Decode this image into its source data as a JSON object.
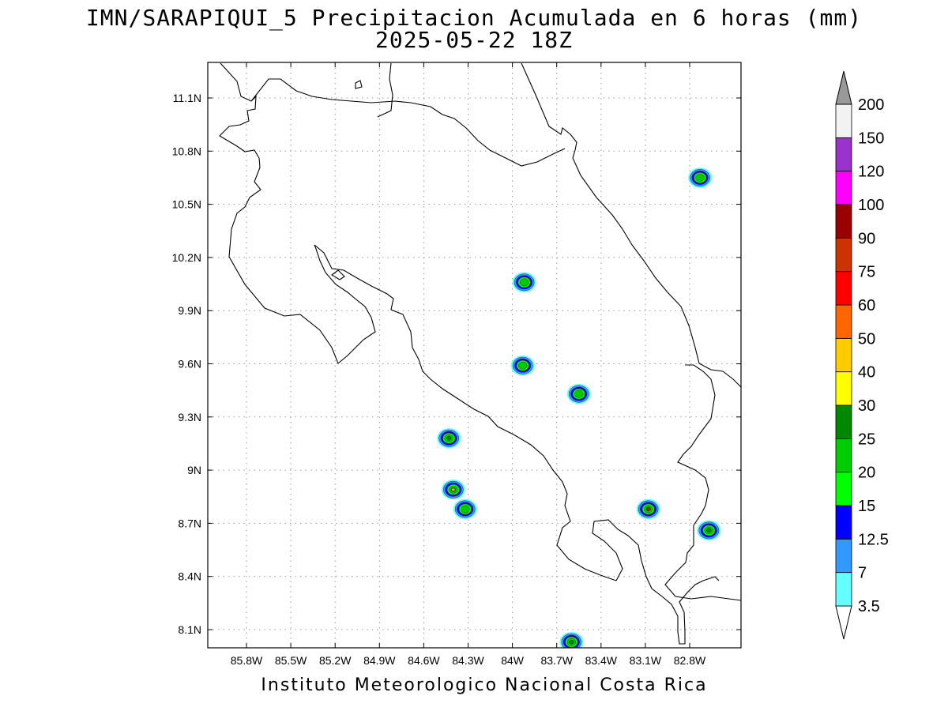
{
  "title": {
    "line1": "IMN/SARAPIQUI_5 Precipitacion Acumulada en 6 horas (mm)",
    "line2": "2025-05-22 18Z"
  },
  "footer": "Instituto Meteorologico Nacional Costa Rica",
  "map": {
    "lon_labels": [
      "85.8W",
      "85.5W",
      "85.2W",
      "84.9W",
      "84.6W",
      "84.3W",
      "84W",
      "83.7W",
      "83.4W",
      "83.1W",
      "82.8W"
    ],
    "lat_labels": [
      "11.1N",
      "10.8N",
      "10.5N",
      "10.2N",
      "9.9N",
      "9.6N",
      "9.3N",
      "9N",
      "8.7N",
      "8.4N",
      "8.1N"
    ],
    "grid": "dotted",
    "coastline_color": "#000000",
    "precip_cells": [
      {
        "lon": -84.43,
        "lat": 9.18,
        "peak_mm": 25
      },
      {
        "lon": -84.4,
        "lat": 8.89,
        "peak_mm": 40
      },
      {
        "lon": -84.32,
        "lat": 8.78,
        "peak_mm": 20
      },
      {
        "lon": -83.92,
        "lat": 10.06,
        "peak_mm": 20
      },
      {
        "lon": -83.93,
        "lat": 9.59,
        "peak_mm": 20
      },
      {
        "lon": -83.55,
        "lat": 9.43,
        "peak_mm": 20
      },
      {
        "lon": -83.08,
        "lat": 8.78,
        "peak_mm": 60
      },
      {
        "lon": -82.67,
        "lat": 8.66,
        "peak_mm": 25
      },
      {
        "lon": -82.73,
        "lat": 10.65,
        "peak_mm": 20
      },
      {
        "lon": -83.6,
        "lat": 8.03,
        "peak_mm": 25
      }
    ]
  },
  "colorbar": {
    "labels": [
      "3.5",
      "7",
      "12.5",
      "15",
      "20",
      "25",
      "30",
      "40",
      "50",
      "60",
      "75",
      "90",
      "100",
      "120",
      "150",
      "200"
    ],
    "colors": [
      "#66ffff",
      "#3399ff",
      "#0000ff",
      "#00ff00",
      "#00cc00",
      "#008800",
      "#ffff00",
      "#ffcc00",
      "#ff6600",
      "#ff0000",
      "#cc3300",
      "#990000",
      "#ff00ff",
      "#9933cc",
      "#f2f2f2",
      "#999999"
    ]
  }
}
